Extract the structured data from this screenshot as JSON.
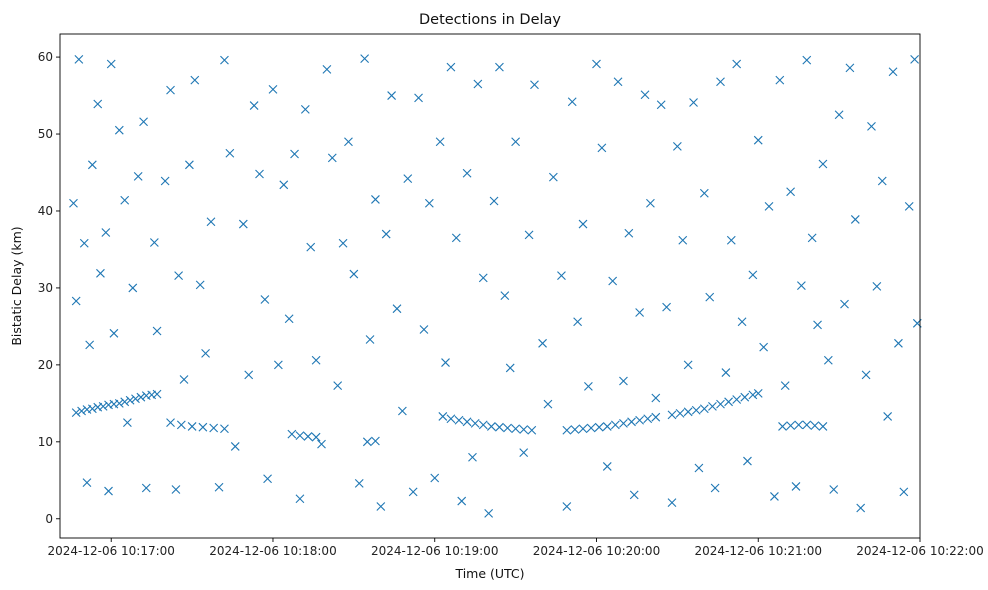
{
  "chart_data": {
    "type": "scatter",
    "title": "Detections in Delay",
    "xlabel": "Time (UTC)",
    "ylabel": "Bistatic Delay (km)",
    "x_unit": "datetime",
    "xlim": [
      "2024-12-06T10:16:41",
      "2024-12-06T10:22:00"
    ],
    "ylim": [
      -2.5,
      63
    ],
    "x_ticks": [
      {
        "value": "2024-12-06T10:17:00",
        "label": "2024-12-06 10:17:00"
      },
      {
        "value": "2024-12-06T10:18:00",
        "label": "2024-12-06 10:18:00"
      },
      {
        "value": "2024-12-06T10:19:00",
        "label": "2024-12-06 10:19:00"
      },
      {
        "value": "2024-12-06T10:20:00",
        "label": "2024-12-06 10:20:00"
      },
      {
        "value": "2024-12-06T10:21:00",
        "label": "2024-12-06 10:21:00"
      },
      {
        "value": "2024-12-06T10:22:00",
        "label": "2024-12-06 10:22:00"
      }
    ],
    "y_ticks": [
      {
        "value": 0,
        "label": "0"
      },
      {
        "value": 10,
        "label": "10"
      },
      {
        "value": 20,
        "label": "20"
      },
      {
        "value": 30,
        "label": "30"
      },
      {
        "value": 40,
        "label": "40"
      },
      {
        "value": 50,
        "label": "50"
      },
      {
        "value": 60,
        "label": "60"
      }
    ],
    "grid": false,
    "marker": "x",
    "color": "#1f77b4",
    "series": [
      {
        "points": [
          [
            "2024-12-06T10:16:47",
            13.8
          ],
          [
            "2024-12-06T10:16:49",
            14.0
          ],
          [
            "2024-12-06T10:16:51",
            14.2
          ],
          [
            "2024-12-06T10:16:53",
            14.3
          ],
          [
            "2024-12-06T10:16:55",
            14.5
          ],
          [
            "2024-12-06T10:16:57",
            14.6
          ],
          [
            "2024-12-06T10:16:59",
            14.8
          ],
          [
            "2024-12-06T10:17:01",
            14.9
          ],
          [
            "2024-12-06T10:17:03",
            15.0
          ],
          [
            "2024-12-06T10:17:05",
            15.2
          ],
          [
            "2024-12-06T10:17:07",
            15.4
          ],
          [
            "2024-12-06T10:17:09",
            15.6
          ],
          [
            "2024-12-06T10:17:11",
            15.8
          ],
          [
            "2024-12-06T10:17:13",
            16.0
          ],
          [
            "2024-12-06T10:17:15",
            16.1
          ],
          [
            "2024-12-06T10:17:17",
            16.2
          ],
          [
            "2024-12-06T10:17:22",
            12.5
          ],
          [
            "2024-12-06T10:17:26",
            12.2
          ],
          [
            "2024-12-06T10:17:30",
            12.0
          ],
          [
            "2024-12-06T10:17:34",
            11.9
          ],
          [
            "2024-12-06T10:17:38",
            11.8
          ],
          [
            "2024-12-06T10:17:42",
            11.7
          ],
          [
            "2024-12-06T10:18:07",
            11.0
          ],
          [
            "2024-12-06T10:18:10",
            10.8
          ],
          [
            "2024-12-06T10:18:13",
            10.7
          ],
          [
            "2024-12-06T10:18:16",
            10.6
          ],
          [
            "2024-12-06T10:18:35",
            10.0
          ],
          [
            "2024-12-06T10:18:38",
            10.1
          ],
          [
            "2024-12-06T10:19:03",
            13.3
          ],
          [
            "2024-12-06T10:19:06",
            13.0
          ],
          [
            "2024-12-06T10:19:09",
            12.8
          ],
          [
            "2024-12-06T10:19:12",
            12.6
          ],
          [
            "2024-12-06T10:19:15",
            12.4
          ],
          [
            "2024-12-06T10:19:18",
            12.2
          ],
          [
            "2024-12-06T10:19:21",
            12.0
          ],
          [
            "2024-12-06T10:19:24",
            11.9
          ],
          [
            "2024-12-06T10:19:27",
            11.8
          ],
          [
            "2024-12-06T10:19:30",
            11.7
          ],
          [
            "2024-12-06T10:19:33",
            11.6
          ],
          [
            "2024-12-06T10:19:36",
            11.5
          ],
          [
            "2024-12-06T10:19:49",
            11.5
          ],
          [
            "2024-12-06T10:19:52",
            11.6
          ],
          [
            "2024-12-06T10:19:55",
            11.7
          ],
          [
            "2024-12-06T10:19:58",
            11.8
          ],
          [
            "2024-12-06T10:20:01",
            11.9
          ],
          [
            "2024-12-06T10:20:04",
            12.0
          ],
          [
            "2024-12-06T10:20:07",
            12.2
          ],
          [
            "2024-12-06T10:20:10",
            12.4
          ],
          [
            "2024-12-06T10:20:13",
            12.6
          ],
          [
            "2024-12-06T10:20:16",
            12.8
          ],
          [
            "2024-12-06T10:20:19",
            13.0
          ],
          [
            "2024-12-06T10:20:22",
            13.2
          ],
          [
            "2024-12-06T10:20:28",
            13.5
          ],
          [
            "2024-12-06T10:20:31",
            13.7
          ],
          [
            "2024-12-06T10:20:34",
            13.9
          ],
          [
            "2024-12-06T10:20:37",
            14.1
          ],
          [
            "2024-12-06T10:20:40",
            14.3
          ],
          [
            "2024-12-06T10:20:43",
            14.6
          ],
          [
            "2024-12-06T10:20:46",
            14.9
          ],
          [
            "2024-12-06T10:20:49",
            15.2
          ],
          [
            "2024-12-06T10:20:52",
            15.5
          ],
          [
            "2024-12-06T10:20:55",
            15.8
          ],
          [
            "2024-12-06T10:20:58",
            16.1
          ],
          [
            "2024-12-06T10:21:00",
            16.3
          ],
          [
            "2024-12-06T10:21:09",
            12.0
          ],
          [
            "2024-12-06T10:21:12",
            12.1
          ],
          [
            "2024-12-06T10:21:15",
            12.2
          ],
          [
            "2024-12-06T10:21:18",
            12.2
          ],
          [
            "2024-12-06T10:21:21",
            12.1
          ],
          [
            "2024-12-06T10:21:24",
            12.0
          ],
          [
            "2024-12-06T10:16:46",
            41.0
          ],
          [
            "2024-12-06T10:16:47",
            28.3
          ],
          [
            "2024-12-06T10:16:48",
            59.7
          ],
          [
            "2024-12-06T10:16:50",
            35.8
          ],
          [
            "2024-12-06T10:16:51",
            4.7
          ],
          [
            "2024-12-06T10:16:52",
            22.6
          ],
          [
            "2024-12-06T10:16:53",
            46.0
          ],
          [
            "2024-12-06T10:16:55",
            53.9
          ],
          [
            "2024-12-06T10:16:56",
            31.9
          ],
          [
            "2024-12-06T10:16:58",
            37.2
          ],
          [
            "2024-12-06T10:16:59",
            3.6
          ],
          [
            "2024-12-06T10:17:00",
            59.1
          ],
          [
            "2024-12-06T10:17:01",
            24.1
          ],
          [
            "2024-12-06T10:17:03",
            50.5
          ],
          [
            "2024-12-06T10:17:05",
            41.4
          ],
          [
            "2024-12-06T10:17:06",
            12.5
          ],
          [
            "2024-12-06T10:17:08",
            30.0
          ],
          [
            "2024-12-06T10:17:10",
            44.5
          ],
          [
            "2024-12-06T10:17:12",
            51.6
          ],
          [
            "2024-12-06T10:17:13",
            4.0
          ],
          [
            "2024-12-06T10:17:16",
            35.9
          ],
          [
            "2024-12-06T10:17:17",
            24.4
          ],
          [
            "2024-12-06T10:17:20",
            43.9
          ],
          [
            "2024-12-06T10:17:22",
            55.7
          ],
          [
            "2024-12-06T10:17:24",
            3.8
          ],
          [
            "2024-12-06T10:17:25",
            31.6
          ],
          [
            "2024-12-06T10:17:27",
            18.1
          ],
          [
            "2024-12-06T10:17:29",
            46.0
          ],
          [
            "2024-12-06T10:17:31",
            57.0
          ],
          [
            "2024-12-06T10:17:33",
            30.4
          ],
          [
            "2024-12-06T10:17:35",
            21.5
          ],
          [
            "2024-12-06T10:17:37",
            38.6
          ],
          [
            "2024-12-06T10:17:40",
            4.1
          ],
          [
            "2024-12-06T10:17:42",
            59.6
          ],
          [
            "2024-12-06T10:17:44",
            47.5
          ],
          [
            "2024-12-06T10:17:46",
            9.4
          ],
          [
            "2024-12-06T10:17:49",
            38.3
          ],
          [
            "2024-12-06T10:17:51",
            18.7
          ],
          [
            "2024-12-06T10:17:53",
            53.7
          ],
          [
            "2024-12-06T10:17:55",
            44.8
          ],
          [
            "2024-12-06T10:17:57",
            28.5
          ],
          [
            "2024-12-06T10:17:58",
            5.2
          ],
          [
            "2024-12-06T10:18:00",
            55.8
          ],
          [
            "2024-12-06T10:18:02",
            20.0
          ],
          [
            "2024-12-06T10:18:04",
            43.4
          ],
          [
            "2024-12-06T10:18:06",
            26.0
          ],
          [
            "2024-12-06T10:18:08",
            47.4
          ],
          [
            "2024-12-06T10:18:10",
            2.6
          ],
          [
            "2024-12-06T10:18:12",
            53.2
          ],
          [
            "2024-12-06T10:18:14",
            35.3
          ],
          [
            "2024-12-06T10:18:16",
            20.6
          ],
          [
            "2024-12-06T10:18:18",
            9.7
          ],
          [
            "2024-12-06T10:18:20",
            58.4
          ],
          [
            "2024-12-06T10:18:22",
            46.9
          ],
          [
            "2024-12-06T10:18:24",
            17.3
          ],
          [
            "2024-12-06T10:18:26",
            35.8
          ],
          [
            "2024-12-06T10:18:28",
            49.0
          ],
          [
            "2024-12-06T10:18:30",
            31.8
          ],
          [
            "2024-12-06T10:18:32",
            4.6
          ],
          [
            "2024-12-06T10:18:34",
            59.8
          ],
          [
            "2024-12-06T10:18:36",
            23.3
          ],
          [
            "2024-12-06T10:18:38",
            41.5
          ],
          [
            "2024-12-06T10:18:40",
            1.6
          ],
          [
            "2024-12-06T10:18:42",
            37.0
          ],
          [
            "2024-12-06T10:18:44",
            55.0
          ],
          [
            "2024-12-06T10:18:46",
            27.3
          ],
          [
            "2024-12-06T10:18:48",
            14.0
          ],
          [
            "2024-12-06T10:18:50",
            44.2
          ],
          [
            "2024-12-06T10:18:52",
            3.5
          ],
          [
            "2024-12-06T10:18:54",
            54.7
          ],
          [
            "2024-12-06T10:18:56",
            24.6
          ],
          [
            "2024-12-06T10:18:58",
            41.0
          ],
          [
            "2024-12-06T10:19:00",
            5.3
          ],
          [
            "2024-12-06T10:19:02",
            49.0
          ],
          [
            "2024-12-06T10:19:04",
            20.3
          ],
          [
            "2024-12-06T10:19:06",
            58.7
          ],
          [
            "2024-12-06T10:19:08",
            36.5
          ],
          [
            "2024-12-06T10:19:10",
            2.3
          ],
          [
            "2024-12-06T10:19:12",
            44.9
          ],
          [
            "2024-12-06T10:19:14",
            8.0
          ],
          [
            "2024-12-06T10:19:16",
            56.5
          ],
          [
            "2024-12-06T10:19:18",
            31.3
          ],
          [
            "2024-12-06T10:19:20",
            0.7
          ],
          [
            "2024-12-06T10:19:22",
            41.3
          ],
          [
            "2024-12-06T10:19:24",
            58.7
          ],
          [
            "2024-12-06T10:19:26",
            29.0
          ],
          [
            "2024-12-06T10:19:28",
            19.6
          ],
          [
            "2024-12-06T10:19:30",
            49.0
          ],
          [
            "2024-12-06T10:19:33",
            8.6
          ],
          [
            "2024-12-06T10:19:35",
            36.9
          ],
          [
            "2024-12-06T10:19:37",
            56.4
          ],
          [
            "2024-12-06T10:19:40",
            22.8
          ],
          [
            "2024-12-06T10:19:42",
            14.9
          ],
          [
            "2024-12-06T10:19:44",
            44.4
          ],
          [
            "2024-12-06T10:19:47",
            31.6
          ],
          [
            "2024-12-06T10:19:49",
            1.6
          ],
          [
            "2024-12-06T10:19:51",
            54.2
          ],
          [
            "2024-12-06T10:19:53",
            25.6
          ],
          [
            "2024-12-06T10:19:55",
            38.3
          ],
          [
            "2024-12-06T10:19:57",
            17.2
          ],
          [
            "2024-12-06T10:20:00",
            59.1
          ],
          [
            "2024-12-06T10:20:02",
            48.2
          ],
          [
            "2024-12-06T10:20:04",
            6.8
          ],
          [
            "2024-12-06T10:20:06",
            30.9
          ],
          [
            "2024-12-06T10:20:08",
            56.8
          ],
          [
            "2024-12-06T10:20:10",
            17.9
          ],
          [
            "2024-12-06T10:20:12",
            37.1
          ],
          [
            "2024-12-06T10:20:14",
            3.1
          ],
          [
            "2024-12-06T10:20:16",
            26.8
          ],
          [
            "2024-12-06T10:20:18",
            55.1
          ],
          [
            "2024-12-06T10:20:20",
            41.0
          ],
          [
            "2024-12-06T10:20:22",
            15.7
          ],
          [
            "2024-12-06T10:20:24",
            53.8
          ],
          [
            "2024-12-06T10:20:26",
            27.5
          ],
          [
            "2024-12-06T10:20:28",
            2.1
          ],
          [
            "2024-12-06T10:20:30",
            48.4
          ],
          [
            "2024-12-06T10:20:32",
            36.2
          ],
          [
            "2024-12-06T10:20:34",
            20.0
          ],
          [
            "2024-12-06T10:20:36",
            54.1
          ],
          [
            "2024-12-06T10:20:38",
            6.6
          ],
          [
            "2024-12-06T10:20:40",
            42.3
          ],
          [
            "2024-12-06T10:20:42",
            28.8
          ],
          [
            "2024-12-06T10:20:44",
            4.0
          ],
          [
            "2024-12-06T10:20:46",
            56.8
          ],
          [
            "2024-12-06T10:20:48",
            19.0
          ],
          [
            "2024-12-06T10:20:50",
            36.2
          ],
          [
            "2024-12-06T10:20:52",
            59.1
          ],
          [
            "2024-12-06T10:20:54",
            25.6
          ],
          [
            "2024-12-06T10:20:56",
            7.5
          ],
          [
            "2024-12-06T10:20:58",
            31.7
          ],
          [
            "2024-12-06T10:21:00",
            49.2
          ],
          [
            "2024-12-06T10:21:02",
            22.3
          ],
          [
            "2024-12-06T10:21:04",
            40.6
          ],
          [
            "2024-12-06T10:21:06",
            2.9
          ],
          [
            "2024-12-06T10:21:08",
            57.0
          ],
          [
            "2024-12-06T10:21:10",
            17.3
          ],
          [
            "2024-12-06T10:21:12",
            42.5
          ],
          [
            "2024-12-06T10:21:14",
            4.2
          ],
          [
            "2024-12-06T10:21:16",
            30.3
          ],
          [
            "2024-12-06T10:21:18",
            59.6
          ],
          [
            "2024-12-06T10:21:20",
            36.5
          ],
          [
            "2024-12-06T10:21:22",
            25.2
          ],
          [
            "2024-12-06T10:21:24",
            46.1
          ],
          [
            "2024-12-06T10:21:26",
            20.6
          ],
          [
            "2024-12-06T10:21:28",
            3.8
          ],
          [
            "2024-12-06T10:21:30",
            52.5
          ],
          [
            "2024-12-06T10:21:32",
            27.9
          ],
          [
            "2024-12-06T10:21:34",
            58.6
          ],
          [
            "2024-12-06T10:21:36",
            38.9
          ],
          [
            "2024-12-06T10:21:38",
            1.4
          ],
          [
            "2024-12-06T10:21:40",
            18.7
          ],
          [
            "2024-12-06T10:21:42",
            51.0
          ],
          [
            "2024-12-06T10:21:44",
            30.2
          ],
          [
            "2024-12-06T10:21:46",
            43.9
          ],
          [
            "2024-12-06T10:21:48",
            13.3
          ],
          [
            "2024-12-06T10:21:50",
            58.1
          ],
          [
            "2024-12-06T10:21:52",
            22.8
          ],
          [
            "2024-12-06T10:21:54",
            3.5
          ],
          [
            "2024-12-06T10:21:56",
            40.6
          ],
          [
            "2024-12-06T10:21:58",
            59.7
          ],
          [
            "2024-12-06T10:21:59",
            25.4
          ]
        ]
      }
    ]
  }
}
